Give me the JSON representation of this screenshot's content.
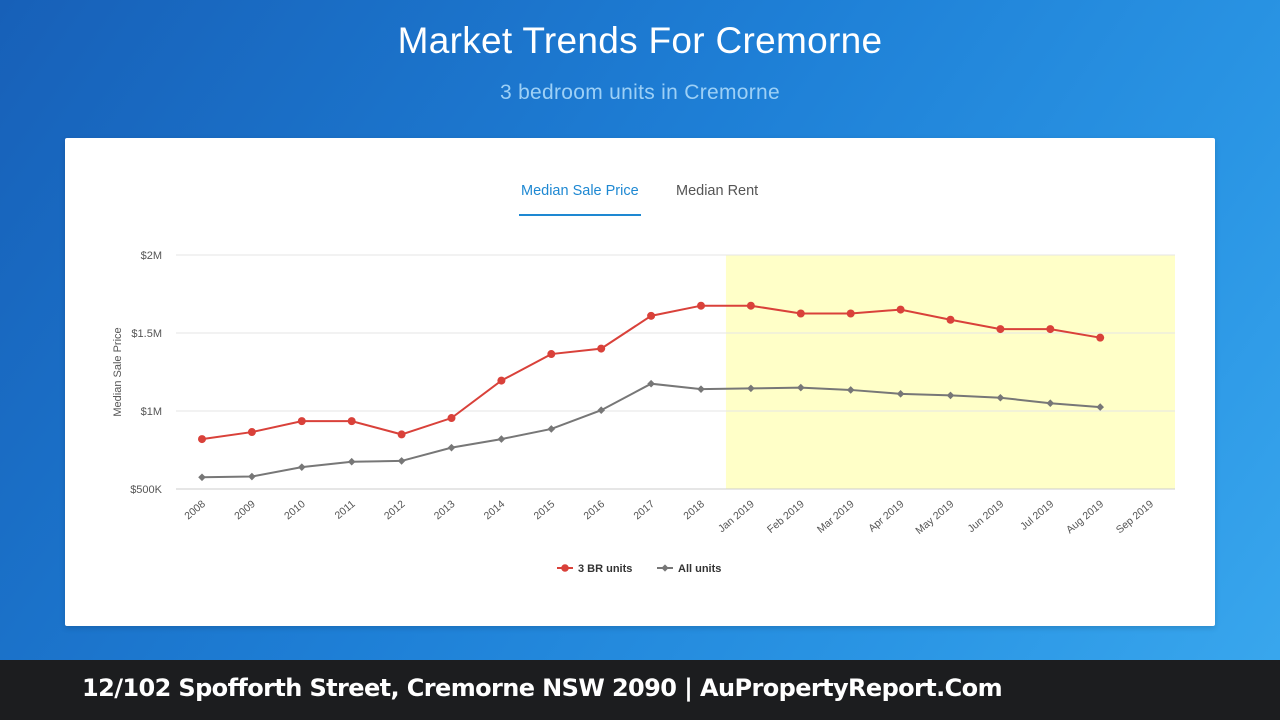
{
  "header": {
    "title": "Market Trends For Cremorne",
    "subtitle": "3 bedroom units in Cremorne"
  },
  "tabs": [
    {
      "label": "Median Sale Price",
      "active": true
    },
    {
      "label": "Median Rent",
      "active": false
    }
  ],
  "footer": {
    "text": "12/102 Spofforth Street, Cremorne NSW 2090 | AuPropertyReport.Com"
  },
  "colors": {
    "accent": "#1e88d2",
    "highlight_band": "#ffffc8"
  },
  "chart_data": {
    "type": "line",
    "ylabel": "Median Sale Price",
    "xlabel": "",
    "ylim": [
      500000,
      2000000
    ],
    "y_ticks": [
      500000,
      1000000,
      1500000,
      2000000
    ],
    "y_tick_labels": [
      "$500K",
      "$1M",
      "$1.5M",
      "$2M"
    ],
    "categories": [
      "2008",
      "2009",
      "2010",
      "2011",
      "2012",
      "2013",
      "2014",
      "2015",
      "2016",
      "2017",
      "2018",
      "Jan 2019",
      "Feb 2019",
      "Mar 2019",
      "Apr 2019",
      "May 2019",
      "Jun 2019",
      "Jul 2019",
      "Aug 2019",
      "Sep 2019"
    ],
    "highlight_range": [
      "Jan 2019",
      "Sep 2019"
    ],
    "legend_position": "bottom",
    "grid": true,
    "series": [
      {
        "name": "3 BR units",
        "color": "#d9413a",
        "marker": "circle",
        "values": [
          820000,
          865000,
          935000,
          935000,
          850000,
          955000,
          1195000,
          1365000,
          1400000,
          1610000,
          1675000,
          1675000,
          1625000,
          1625000,
          1650000,
          1585000,
          1525000,
          1525000,
          1470000,
          null
        ]
      },
      {
        "name": "All units",
        "color": "#777777",
        "marker": "diamond",
        "values": [
          575000,
          580000,
          640000,
          675000,
          680000,
          765000,
          820000,
          885000,
          1005000,
          1175000,
          1140000,
          1145000,
          1150000,
          1135000,
          1110000,
          1100000,
          1085000,
          1050000,
          1025000,
          null
        ]
      }
    ]
  }
}
